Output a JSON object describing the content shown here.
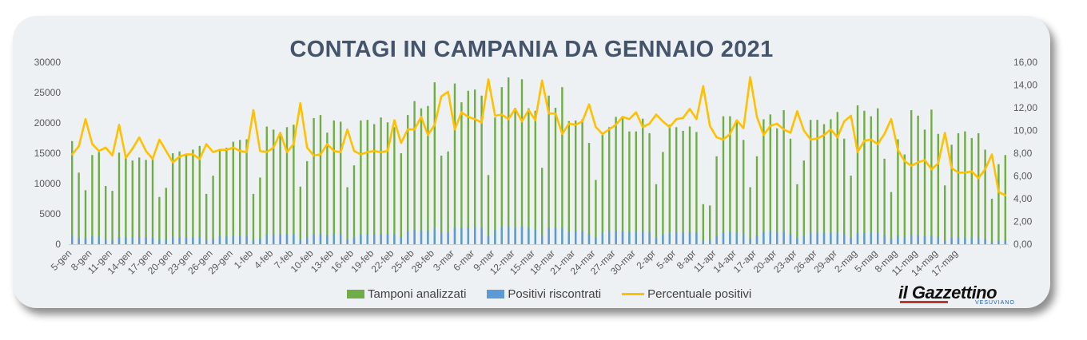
{
  "colors": {
    "tamponi": "#70ad47",
    "positivi": "#5b9bd5",
    "percentuale": "#ffc000",
    "title": "#44546a",
    "axis_text": "#595959"
  },
  "logo": {
    "main": "il Gazzettino",
    "sub": "VESUVIANO"
  },
  "chart_data": {
    "type": "bar",
    "title": "CONTAGI IN CAMPANIA DA GENNAIO 2021",
    "ylim": [
      0,
      30000
    ],
    "y_ticks": [
      "0",
      "5000",
      "10000",
      "15000",
      "20000",
      "25000",
      "30000"
    ],
    "y2lim": [
      0,
      16
    ],
    "y2_ticks": [
      "0,00",
      "2,00",
      "4,00",
      "6,00",
      "8,00",
      "10,00",
      "12,00",
      "14,00",
      "16,00"
    ],
    "x_tick_labels": [
      "5-gen",
      "8-gen",
      "11-gen",
      "14-gen",
      "17-gen",
      "20-gen",
      "23-gen",
      "26-gen",
      "29-gen",
      "1-feb",
      "4-feb",
      "7-feb",
      "10-feb",
      "13-feb",
      "16-feb",
      "19-feb",
      "22-feb",
      "25-feb",
      "28-feb",
      "3-mar",
      "6-mar",
      "9-mar",
      "12-mar",
      "15-mar",
      "18-mar",
      "21-mar",
      "24-mar",
      "27-mar",
      "30-mar",
      "2-apr",
      "5-apr",
      "8-apr",
      "11-apr",
      "14-apr",
      "17-apr",
      "20-apr",
      "23-apr",
      "26-apr",
      "29-apr",
      "2-mag",
      "5-mag",
      "8-mag",
      "11-mag",
      "14-mag",
      "17-mag"
    ],
    "legend": [
      "Tamponi analizzati",
      "Positivi riscontrati",
      "Percentuale positivi"
    ],
    "grid": false,
    "series": [
      {
        "name": "Tamponi analizzati",
        "values": [
          17000,
          11800,
          8900,
          14700,
          15200,
          9600,
          8800,
          15100,
          14300,
          13800,
          14300,
          13900,
          14100,
          7800,
          9300,
          15000,
          15300,
          14900,
          15600,
          16200,
          8300,
          11300,
          15700,
          15900,
          16900,
          17200,
          17300,
          8300,
          11000,
          19400,
          18900,
          18400,
          19300,
          19700,
          9500,
          13700,
          20800,
          21300,
          18400,
          20400,
          20200,
          9400,
          13000,
          20400,
          20500,
          19800,
          20900,
          20100,
          19300,
          15000,
          21300,
          23600,
          22400,
          22800,
          26700,
          14600,
          15300,
          26500,
          23400,
          25300,
          25500,
          24500,
          11400,
          20900,
          25900,
          27500,
          22500,
          27200,
          22400,
          22000,
          12600,
          24500,
          22500,
          25900,
          20300,
          20400,
          20600,
          16700,
          10600,
          18000,
          19300,
          21000,
          20800,
          18600,
          18600,
          20700,
          18300,
          9900,
          15200,
          19700,
          19300,
          18700,
          19400,
          18500,
          6600,
          6400,
          14500,
          21100,
          21100,
          20400,
          17200,
          9400,
          14500,
          20600,
          21400,
          19100,
          22100,
          17400,
          9900,
          13800,
          20500,
          20500,
          19800,
          20600,
          21800,
          17400,
          11300,
          22900,
          22000,
          21100,
          22400,
          14100,
          8600,
          17300,
          14800,
          22100,
          21200,
          18900,
          22200,
          18200,
          9700,
          16400,
          18300,
          18600,
          17500,
          18300,
          15600,
          7500,
          13200,
          14700
        ]
      },
      {
        "name": "Positivi riscontrati",
        "values": [
          1350,
          1020,
          980,
          1300,
          1250,
          820,
          690,
          1180,
          1200,
          1170,
          1190,
          1130,
          1060,
          720,
          760,
          1080,
          1170,
          1150,
          1180,
          1220,
          690,
          920,
          1270,
          1280,
          1350,
          1410,
          1360,
          690,
          900,
          1580,
          1530,
          1580,
          1650,
          1700,
          800,
          1170,
          1620,
          1680,
          1480,
          1660,
          1640,
          760,
          1080,
          1610,
          1650,
          1620,
          1700,
          1640,
          1580,
          1220,
          2090,
          2330,
          2260,
          2250,
          2620,
          1900,
          1980,
          2710,
          2690,
          2760,
          2830,
          2620,
          1320,
          2320,
          2940,
          3030,
          2640,
          2920,
          2630,
          2420,
          1380,
          2720,
          2720,
          2760,
          2050,
          2150,
          2210,
          1730,
          1180,
          1990,
          2080,
          2240,
          2180,
          2050,
          2050,
          2200,
          1950,
          1030,
          1580,
          1920,
          1990,
          1930,
          2000,
          1930,
          660,
          690,
          1400,
          1980,
          2030,
          1970,
          1720,
          930,
          1450,
          2040,
          2110,
          1920,
          2080,
          1730,
          1040,
          1390,
          1890,
          1910,
          1840,
          1930,
          1980,
          1640,
          1070,
          1860,
          1930,
          1870,
          1970,
          1480,
          960,
          1440,
          1070,
          1500,
          1460,
          1350,
          1430,
          1190,
          600,
          1070,
          1180,
          1100,
          1000,
          1040,
          860,
          410,
          620,
          620
        ]
      },
      {
        "name": "Percentuale positivi",
        "axis": "right",
        "values": [
          7.9,
          8.6,
          11.0,
          8.8,
          8.2,
          8.5,
          7.8,
          10.5,
          7.6,
          8.4,
          9.4,
          8.2,
          7.5,
          9.2,
          8.2,
          7.2,
          7.7,
          7.9,
          7.9,
          7.5,
          8.8,
          8.1,
          8.3,
          8.3,
          8.5,
          8.2,
          8.1,
          11.8,
          8.2,
          8.1,
          8.5,
          9.8,
          8.1,
          8.8,
          12.4,
          8.5,
          7.8,
          7.9,
          8.8,
          8.2,
          8.1,
          10.1,
          8.2,
          7.9,
          8.1,
          8.2,
          8.1,
          8.2,
          10.9,
          8.9,
          10.1,
          10.1,
          11.2,
          9.6,
          10.5,
          13.0,
          13.4,
          10.1,
          11.6,
          11.2,
          11.0,
          10.7,
          14.5,
          11.3,
          11.4,
          11.0,
          11.9,
          10.8,
          11.8,
          10.9,
          14.4,
          11.5,
          11.5,
          9.7,
          10.6,
          10.5,
          10.8,
          12.3,
          10.3,
          9.7,
          10.1,
          10.5,
          11.2,
          11.0,
          11.6,
          10.3,
          10.6,
          11.4,
          10.8,
          10.3,
          11.0,
          11.1,
          11.9,
          11.0,
          13.9,
          10.4,
          9.4,
          9.2,
          9.7,
          10.9,
          10.2,
          14.7,
          11.2,
          9.6,
          10.4,
          10.6,
          10.1,
          9.8,
          11.7,
          10.0,
          9.2,
          9.3,
          9.6,
          10.1,
          9.4,
          10.8,
          11.3,
          8.1,
          9.1,
          9.2,
          8.8,
          9.7,
          11.0,
          8.3,
          7.3,
          6.9,
          7.2,
          7.4,
          6.6,
          7.1,
          9.8,
          6.7,
          6.3,
          6.3,
          6.4,
          5.8,
          6.6,
          7.9,
          4.6,
          4.3
        ]
      }
    ]
  }
}
